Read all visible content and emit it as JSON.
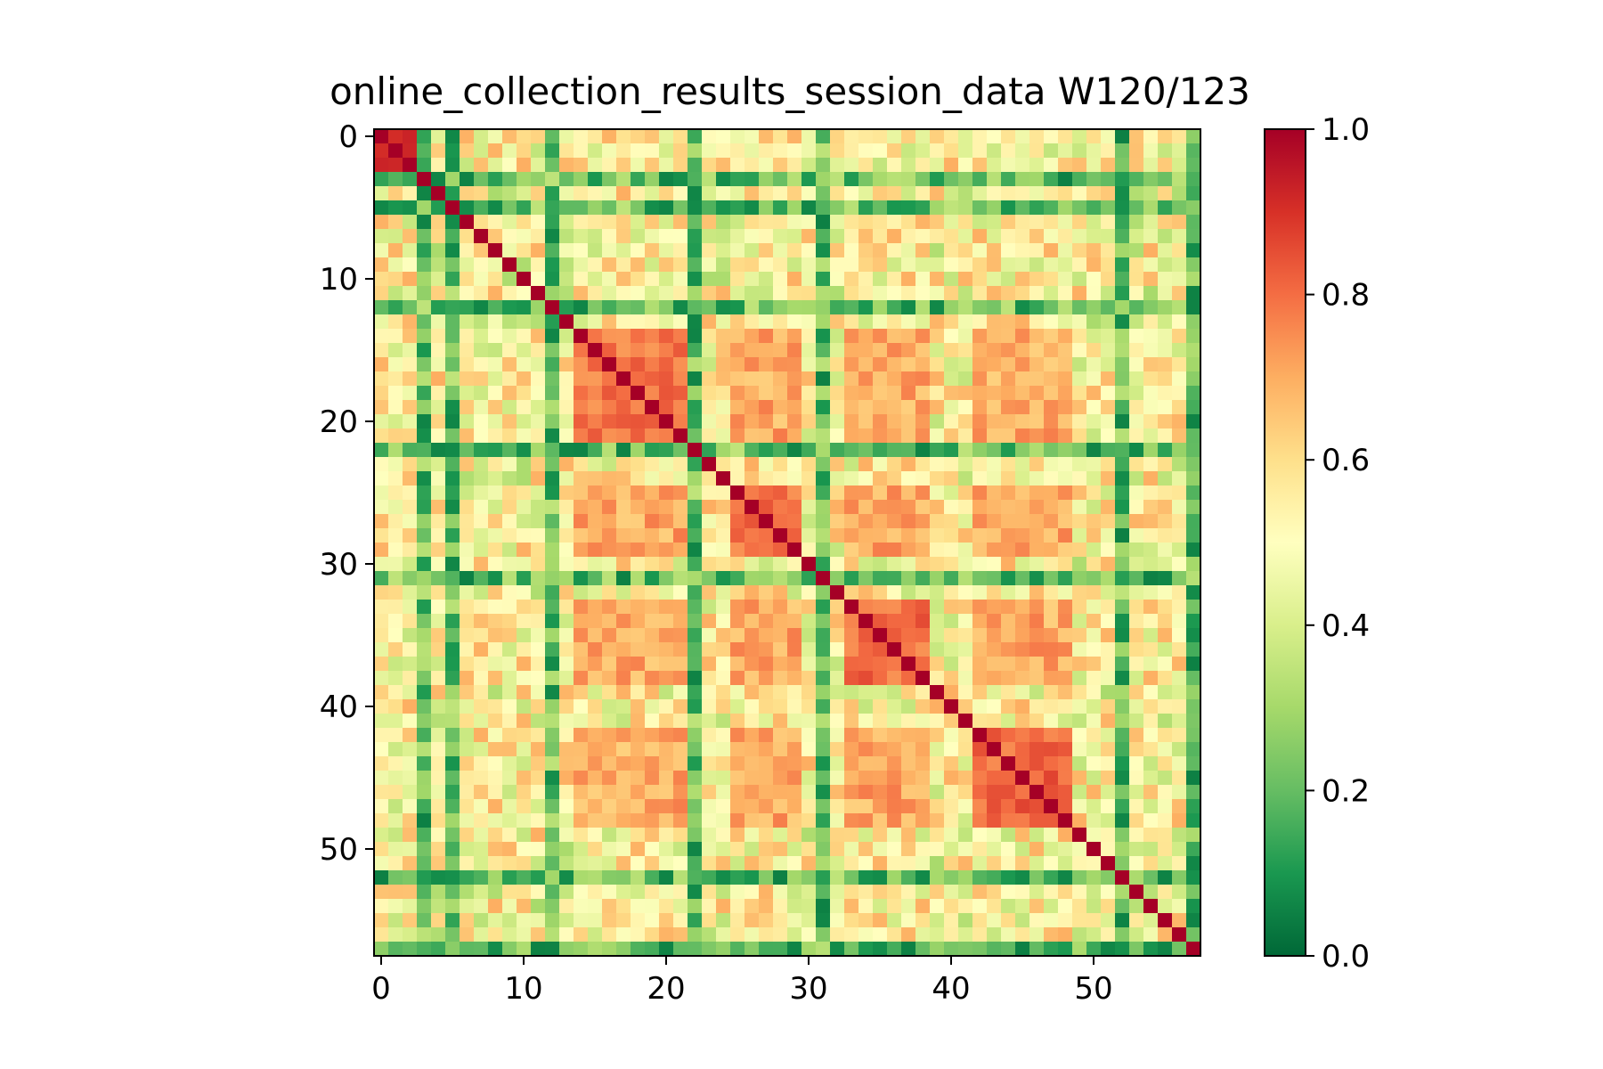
{
  "chart_data": {
    "type": "heatmap",
    "title": "online_collection_results_session_data W120/123",
    "xlabel": "",
    "ylabel": "",
    "rows": 58,
    "cols": 58,
    "x_ticks": [
      "0",
      "10",
      "20",
      "30",
      "40",
      "50"
    ],
    "y_ticks": [
      "0",
      "10",
      "20",
      "30",
      "40",
      "50"
    ],
    "colorbar": {
      "range": [
        0.0,
        1.0
      ],
      "ticks": [
        "0.0",
        "0.2",
        "0.4",
        "0.6",
        "0.8",
        "1.0"
      ],
      "colormap": "RdYlGn_r"
    },
    "grid": false,
    "structure": {
      "diagonal_value": 1.0,
      "low_correlation_indices": [
        3,
        5,
        12,
        22,
        31,
        52,
        57
      ],
      "blocks": [
        {
          "range": [
            0,
            2
          ],
          "within": 0.93
        },
        {
          "range": [
            14,
            21
          ],
          "within": 0.85
        },
        {
          "range": [
            25,
            29
          ],
          "within": 0.86
        },
        {
          "range": [
            33,
            38
          ],
          "within": 0.86
        },
        {
          "range": [
            42,
            48
          ],
          "within": 0.87
        }
      ],
      "between_block_value": 0.78,
      "background_value": 0.5
    }
  }
}
